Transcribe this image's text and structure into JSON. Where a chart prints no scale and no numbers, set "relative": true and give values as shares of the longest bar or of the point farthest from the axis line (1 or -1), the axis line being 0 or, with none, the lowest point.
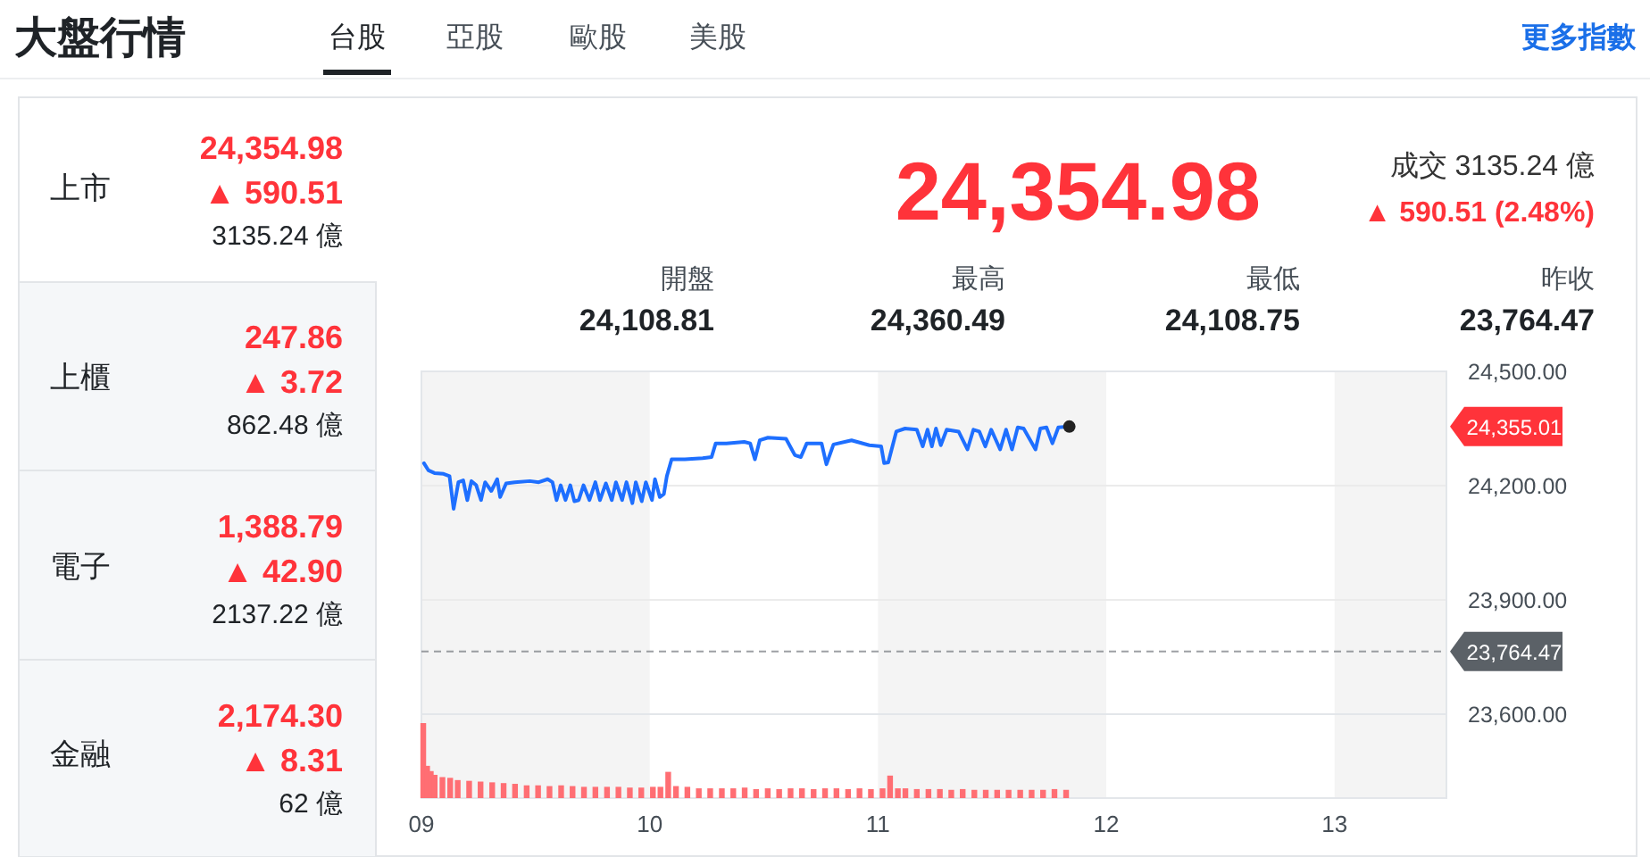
{
  "chart_data": [
    {
      "type": "other",
      "title": "大盤行情",
      "annotations": [
        "台股",
        "亞股",
        "歐股",
        "美股",
        "更多指數",
        "上市",
        "24,354.98",
        "▲ 590.51",
        "3135.24 億",
        "上櫃",
        "247.86",
        "▲ 3.72",
        "862.48 億",
        "電子",
        "1,388.79",
        "▲ 42.90",
        "2137.22 億",
        "金融",
        "2,174.30",
        "▲ 8.31",
        "62 億",
        "24,354.98",
        "成交 3135.24 億",
        "▲ 590.51 (2.48%)",
        "開盤",
        "24,108.81",
        "最高",
        "24,360.49",
        "最低",
        "24,108.75",
        "昨收",
        "23,764.47"
      ]
    },
    {
      "type": "line",
      "xlim": [
        9,
        13.49
      ],
      "ylim": [
        23600,
        24500
      ],
      "yticks": [
        {
          "value": 24500,
          "label": "24,500.00"
        },
        {
          "value": 24200,
          "label": "24,200.00"
        },
        {
          "value": 23900,
          "label": "23,900.00"
        },
        {
          "value": 23600,
          "label": "23,600.00"
        }
      ],
      "grid": "y",
      "tick_labels": "y",
      "bands": [
        {
          "axis": "x",
          "from": 9,
          "to": 10,
          "color": "#f4f4f4"
        },
        {
          "axis": "x",
          "from": 11,
          "to": 12,
          "color": "#f4f4f4"
        },
        {
          "axis": "x",
          "from": 13,
          "to": 13.49,
          "color": "#f4f4f4"
        }
      ],
      "ref_lines": [
        {
          "axis": "y",
          "value": 23764.47,
          "label": "23,764.47",
          "color": "#5b6167",
          "line_style": "dashed"
        }
      ],
      "annotations": [
        "24,355.01"
      ],
      "series": [
        {
          "color": "#1e6fff",
          "x": [
            9.011,
            9.031,
            9.057,
            9.097,
            9.123,
            9.141,
            9.162,
            9.183,
            9.201,
            9.219,
            9.24,
            9.261,
            9.279,
            9.306,
            9.332,
            9.345,
            9.371,
            9.409,
            9.475,
            9.514,
            9.553,
            9.574,
            9.592,
            9.61,
            9.631,
            9.652,
            9.67,
            9.689,
            9.71,
            9.736,
            9.762,
            9.782,
            9.808,
            9.834,
            9.852,
            9.879,
            9.898,
            9.924,
            9.939,
            9.965,
            9.983,
            10.01,
            10.023,
            10.044,
            10.062,
            10.075,
            10.096,
            10.154,
            10.232,
            10.271,
            10.289,
            10.336,
            10.414,
            10.44,
            10.461,
            10.482,
            10.518,
            10.597,
            10.636,
            10.662,
            10.688,
            10.753,
            10.774,
            10.805,
            10.884,
            10.962,
            11.014,
            11.027,
            11.045,
            11.08,
            11.119,
            11.17,
            11.196,
            11.217,
            11.236,
            11.254,
            11.275,
            11.301,
            11.353,
            11.392,
            11.418,
            11.444,
            11.47,
            11.496,
            11.535,
            11.561,
            11.587,
            11.612,
            11.638,
            11.69,
            11.711,
            11.738,
            11.764,
            11.79,
            11.838
          ],
          "values": [
            24259,
            24240,
            24233,
            24231,
            24225,
            24139,
            24209,
            24214,
            24162,
            24212,
            24201,
            24162,
            24209,
            24186,
            24217,
            24170,
            24206,
            24209,
            24212,
            24209,
            24217,
            24209,
            24162,
            24201,
            24162,
            24201,
            24159,
            24162,
            24201,
            24162,
            24209,
            24162,
            24206,
            24162,
            24209,
            24162,
            24209,
            24154,
            24209,
            24159,
            24209,
            24162,
            24217,
            24170,
            24178,
            24225,
            24269,
            24269,
            24272,
            24275,
            24311,
            24311,
            24315,
            24311,
            24269,
            24319,
            24326,
            24323,
            24280,
            24275,
            24311,
            24311,
            24256,
            24308,
            24319,
            24306,
            24303,
            24259,
            24261,
            24342,
            24350,
            24347,
            24303,
            24347,
            24303,
            24350,
            24306,
            24347,
            24342,
            24295,
            24347,
            24342,
            24303,
            24347,
            24295,
            24347,
            24295,
            24353,
            24350,
            24295,
            24350,
            24353,
            24311,
            24353,
            24355
          ]
        },
        {
          "type": "scatter",
          "color": "#222222",
          "x": [
            11.838
          ],
          "values": [
            24355
          ]
        }
      ]
    },
    {
      "type": "bar",
      "relative": true,
      "color": "#ff6e73",
      "xlim": [
        9,
        13.49
      ],
      "tick_labels": "x",
      "xticks": [
        {
          "value": 9,
          "label": "09"
        },
        10,
        11,
        12,
        13
      ],
      "bands": [
        {
          "axis": "x",
          "from": 9,
          "to": 10,
          "color": "#f4f4f4"
        },
        {
          "axis": "x",
          "from": 11,
          "to": 12,
          "color": "#f4f4f4"
        },
        {
          "axis": "x",
          "from": 13,
          "to": 13.49,
          "color": "#f4f4f4"
        }
      ],
      "x": [
        9.008,
        9.025,
        9.041,
        9.058,
        9.092,
        9.126,
        9.159,
        9.209,
        9.259,
        9.31,
        9.36,
        9.41,
        9.461,
        9.511,
        9.561,
        9.612,
        9.662,
        9.712,
        9.762,
        9.813,
        9.863,
        9.913,
        9.963,
        10.014,
        10.047,
        10.081,
        10.115,
        10.165,
        10.215,
        10.265,
        10.316,
        10.366,
        10.416,
        10.466,
        10.517,
        10.567,
        10.617,
        10.667,
        10.718,
        10.768,
        10.818,
        10.869,
        10.919,
        10.969,
        11.02,
        11.053,
        11.087,
        11.12,
        11.17,
        11.221,
        11.271,
        11.321,
        11.371,
        11.422,
        11.472,
        11.522,
        11.572,
        11.623,
        11.673,
        11.723,
        11.773,
        11.824
      ],
      "values": [
        1.0,
        0.43,
        0.36,
        0.31,
        0.28,
        0.27,
        0.24,
        0.23,
        0.22,
        0.21,
        0.2,
        0.19,
        0.17,
        0.17,
        0.16,
        0.17,
        0.16,
        0.15,
        0.15,
        0.15,
        0.15,
        0.14,
        0.14,
        0.15,
        0.15,
        0.35,
        0.16,
        0.15,
        0.13,
        0.13,
        0.13,
        0.13,
        0.14,
        0.12,
        0.13,
        0.12,
        0.13,
        0.13,
        0.12,
        0.13,
        0.13,
        0.12,
        0.13,
        0.12,
        0.13,
        0.3,
        0.13,
        0.13,
        0.12,
        0.12,
        0.12,
        0.11,
        0.12,
        0.11,
        0.11,
        0.11,
        0.11,
        0.11,
        0.11,
        0.11,
        0.12,
        0.11
      ]
    }
  ]
}
